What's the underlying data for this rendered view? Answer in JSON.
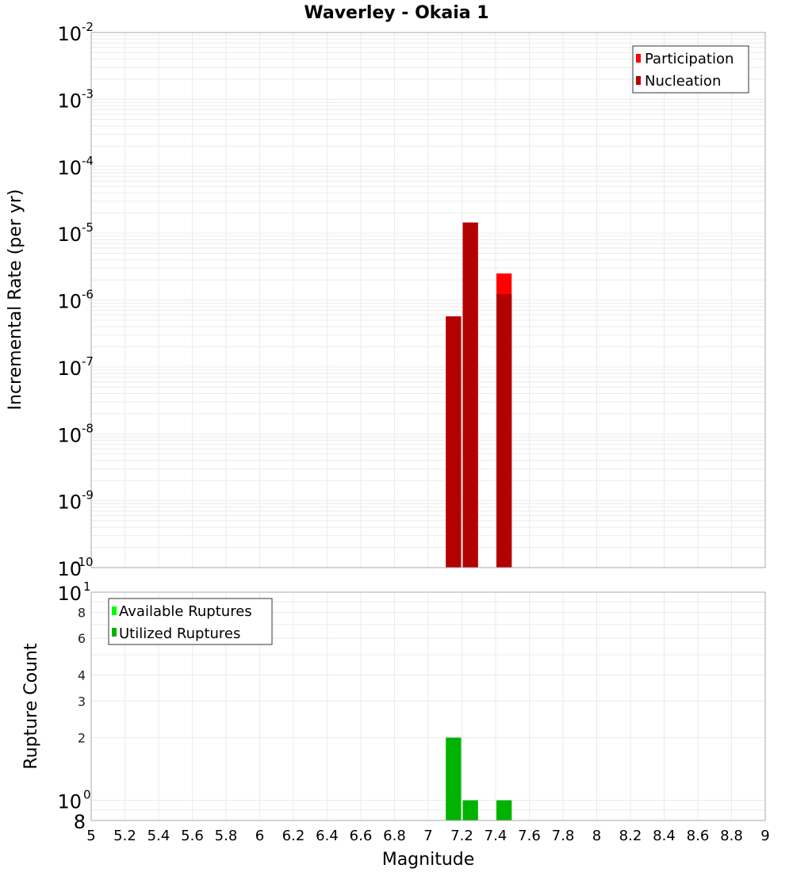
{
  "chart_data": [
    {
      "type": "bar",
      "panel": "top",
      "title": "Waverley - Okaia 1",
      "xlabel": "",
      "ylabel": "Incremental Rate (per yr)",
      "yscale": "log",
      "ylim": [
        1e-10,
        0.01
      ],
      "xlim": [
        5,
        9
      ],
      "bin_width": 0.1,
      "y_tick_labels": [
        {
          "base": "10",
          "exp": "-2",
          "value": 0.01
        },
        {
          "base": "10",
          "exp": "-3",
          "value": 0.001
        },
        {
          "base": "10",
          "exp": "-4",
          "value": 0.0001
        },
        {
          "base": "10",
          "exp": "-5",
          "value": 1e-05
        },
        {
          "base": "10",
          "exp": "-6",
          "value": 1e-06
        },
        {
          "base": "10",
          "exp": "-7",
          "value": 1e-07
        },
        {
          "base": "10",
          "exp": "-8",
          "value": 1e-08
        },
        {
          "base": "10",
          "exp": "-9",
          "value": 1e-09
        },
        {
          "base": "10",
          "exp": "-10",
          "value": 1e-10
        }
      ],
      "grid": true,
      "legend_position": "top-right",
      "x": [
        7.15,
        7.25,
        7.45
      ],
      "series": [
        {
          "name": "Participation",
          "color": "#ff0000",
          "values": [
            5.7e-07,
            1.44e-05,
            2.5e-06
          ]
        },
        {
          "name": "Nucleation",
          "color": "#b30000",
          "values": [
            5.7e-07,
            1.44e-05,
            1.23e-06
          ]
        }
      ]
    },
    {
      "type": "bar",
      "panel": "bottom",
      "title": "",
      "xlabel": "Magnitude",
      "ylabel": "Rupture Count",
      "yscale": "log",
      "ylim": [
        0.8,
        10
      ],
      "xlim": [
        5,
        9
      ],
      "bin_width": 0.1,
      "y_tick_labels": [
        {
          "label": "10",
          "exp": "1",
          "value": 10,
          "major": true
        },
        {
          "label": "8",
          "value": 8,
          "major": false
        },
        {
          "label": "6",
          "value": 6,
          "major": false
        },
        {
          "label": "4",
          "value": 4,
          "major": false
        },
        {
          "label": "3",
          "value": 3,
          "major": false
        },
        {
          "label": "2",
          "value": 2,
          "major": false
        },
        {
          "label": "10",
          "exp": "0",
          "value": 1,
          "major": true
        },
        {
          "label": "8",
          "value": 0.8,
          "major": true,
          "edge": true
        }
      ],
      "x_tick_labels": [
        "5",
        "5.2",
        "5.4",
        "5.6",
        "5.8",
        "6",
        "6.2",
        "6.4",
        "6.6",
        "6.8",
        "7",
        "7.2",
        "7.4",
        "7.6",
        "7.8",
        "8",
        "8.2",
        "8.4",
        "8.6",
        "8.8",
        "9"
      ],
      "grid": true,
      "legend_position": "top-left",
      "x": [
        7.15,
        7.25,
        7.45
      ],
      "series": [
        {
          "name": "Available Ruptures",
          "color": "#00ff00",
          "values": [
            2,
            1,
            1
          ]
        },
        {
          "name": "Utilized Ruptures",
          "color": "#00b300",
          "values": [
            2,
            1,
            1
          ]
        }
      ]
    }
  ],
  "labels": {
    "title": "Waverley - Okaia 1",
    "top_ylabel": "Incremental Rate (per yr)",
    "bottom_ylabel": "Rupture Count",
    "xlabel": "Magnitude",
    "legend_top": [
      "Participation",
      "Nucleation"
    ],
    "legend_bottom": [
      "Available Ruptures",
      "Utilized Ruptures"
    ]
  },
  "colors": {
    "participation": "#ff0000",
    "nucleation": "#b30000",
    "available": "#00ff00",
    "utilized": "#00b300",
    "grid": "#ebebeb",
    "frame": "#aaaaaa"
  }
}
